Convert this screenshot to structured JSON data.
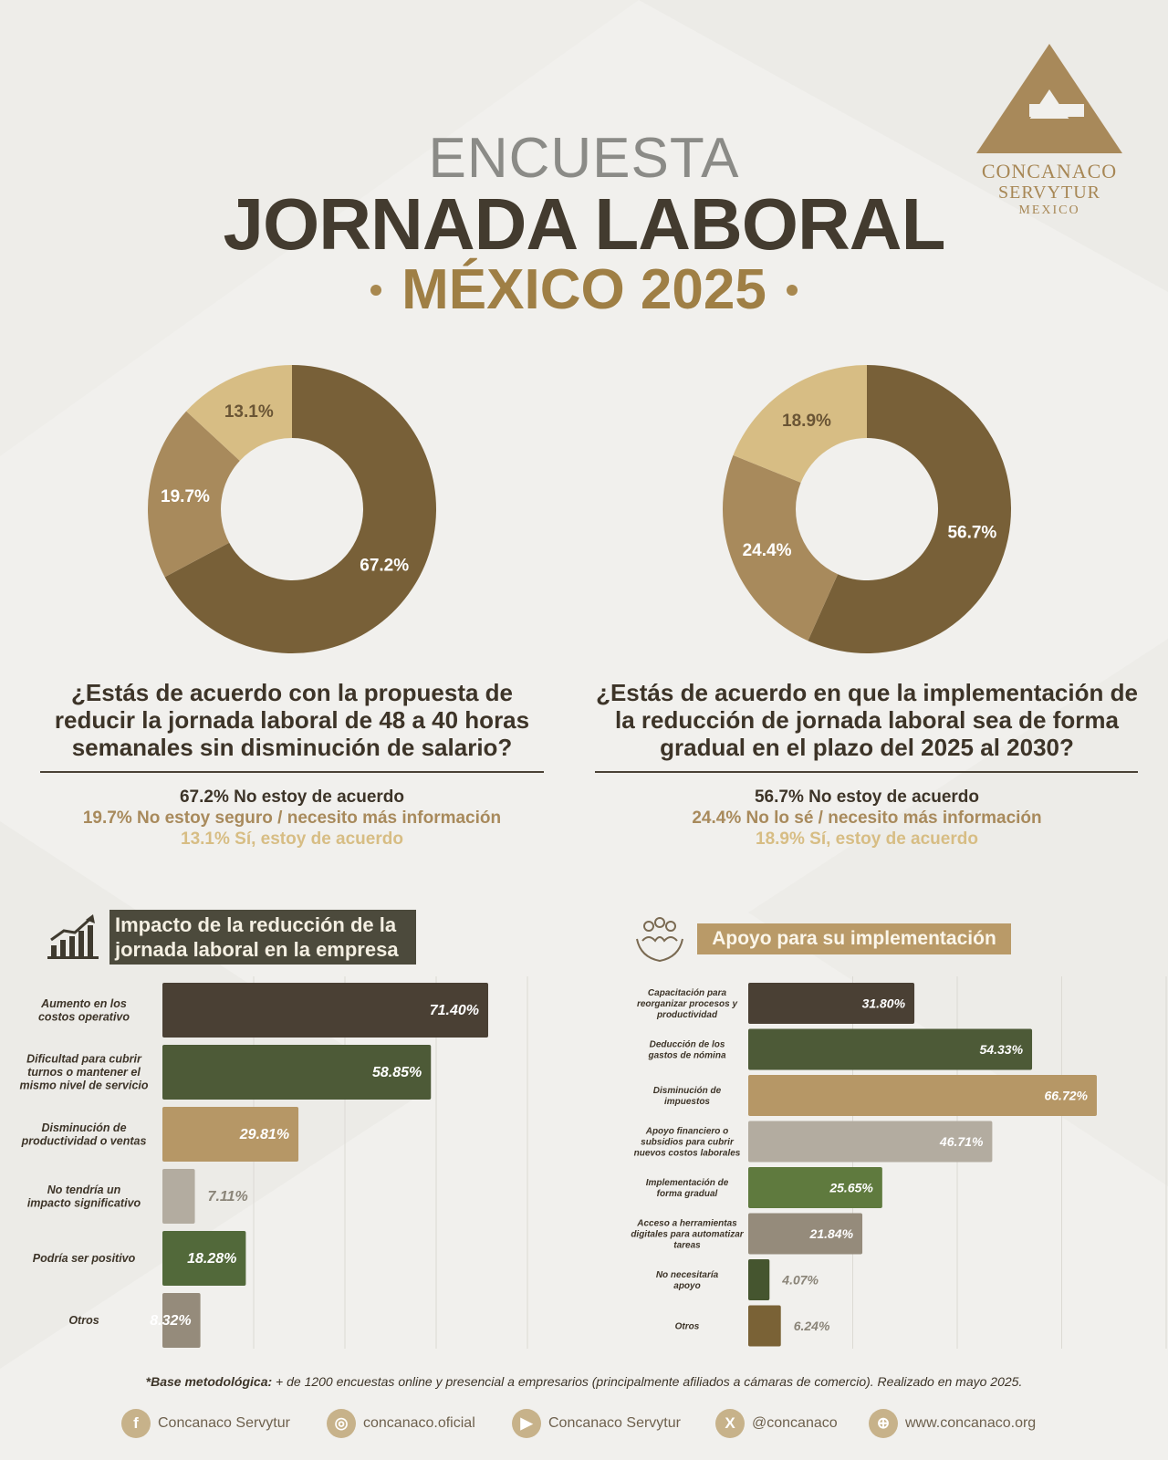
{
  "header": {
    "line1": "ENCUESTA",
    "line2": "JORNADA LABORAL",
    "line3": "MÉXICO 2025"
  },
  "logo": {
    "line1": "CONCANACO",
    "line2": "SERVYTUR",
    "line3": "MEXICO"
  },
  "colors": {
    "dark_brown": "#786038",
    "mid_tan": "#a88a5c",
    "light_tan": "#d7bd84",
    "gold_text": "#9f7f45"
  },
  "survey1": {
    "question": "¿Estás de acuerdo con la propuesta de reducir la jornada laboral de 48 a 40 horas semanales sin disminución de salario?",
    "answers": [
      "67.2% No estoy de acuerdo",
      "19.7% No estoy seguro / necesito más información",
      "13.1% Sí, estoy de acuerdo"
    ]
  },
  "survey2": {
    "question": "¿Estás de acuerdo en que la implementación de la reducción de jornada laboral sea de forma gradual en el plazo del 2025 al 2030?",
    "answers": [
      "56.7% No estoy de acuerdo",
      "24.4% No lo sé / necesito más información",
      "18.9% Sí, estoy de acuerdo"
    ]
  },
  "section_left": {
    "title_l1": "Impacto de la reducción de la",
    "title_l2": "jornada laboral en la empresa"
  },
  "section_right": {
    "title": "Apoyo para su implementación"
  },
  "chart_data": [
    {
      "type": "pie",
      "donut": true,
      "values": [
        67.2,
        19.7,
        13.1
      ],
      "labels": [
        "67.2%",
        "19.7%",
        "13.1%"
      ],
      "colors": [
        "#786038",
        "#a88a5c",
        "#d7bd84"
      ]
    },
    {
      "type": "pie",
      "donut": true,
      "values": [
        56.7,
        24.4,
        18.9
      ],
      "labels": [
        "56.7%",
        "24.4%",
        "18.9%"
      ],
      "colors": [
        "#786038",
        "#a88a5c",
        "#d7bd84"
      ]
    },
    {
      "type": "bar",
      "orientation": "horizontal",
      "categories": [
        [
          "Aumento en los",
          "costos operativo"
        ],
        [
          "Dificultad para cubrir",
          "turnos o mantener el",
          "mismo nivel de servicio"
        ],
        [
          "Disminución de",
          "productividad o ventas"
        ],
        [
          "No tendría un",
          "impacto significativo"
        ],
        [
          "Podría ser positivo"
        ],
        [
          "Otros"
        ]
      ],
      "values": [
        71.4,
        58.85,
        29.81,
        7.11,
        18.28,
        8.32
      ],
      "labels": [
        "71.40%",
        "58.85%",
        "29.81%",
        "7.11%",
        "18.28%",
        "8.32%"
      ],
      "colors": [
        "#4a4034",
        "#4d5a37",
        "#b69766",
        "#b3aca0",
        "#52693a",
        "#958b7b"
      ],
      "xlim": [
        0,
        80
      ]
    },
    {
      "type": "bar",
      "orientation": "horizontal",
      "categories": [
        [
          "Capacitación para",
          "reorganizar procesos y",
          "productividad"
        ],
        [
          "Deducción de los",
          "gastos de nómina"
        ],
        [
          "Disminución de",
          "impuestos"
        ],
        [
          "Apoyo financiero o",
          "subsidios para cubrir",
          "nuevos costos laborales"
        ],
        [
          "Implementación de",
          "forma gradual"
        ],
        [
          "Acceso a herramientas",
          "digitales para automatizar",
          "tareas"
        ],
        [
          "No necesitaría",
          "apoyo"
        ],
        [
          "Otros"
        ]
      ],
      "values": [
        31.8,
        54.33,
        66.72,
        46.71,
        25.65,
        21.84,
        4.07,
        6.24
      ],
      "labels": [
        "31.80%",
        "54.33%",
        "66.72%",
        "46.71%",
        "25.65%",
        "21.84%",
        "4.07%",
        "6.24%"
      ],
      "colors": [
        "#4a4034",
        "#4d5a37",
        "#b69766",
        "#b3aca0",
        "#5f7a3e",
        "#958b7b",
        "#45552f",
        "#7a6236"
      ],
      "xlim": [
        0,
        80
      ]
    }
  ],
  "footer": {
    "method_bold": "*Base metodológica:",
    "method_text": " + de 1200 encuestas online y presencial a empresarios (principalmente afiliados a cámaras de comercio). Realizado en mayo 2025.",
    "social": [
      {
        "icon": "facebook-icon",
        "text": "Concanaco Servytur"
      },
      {
        "icon": "instagram-icon",
        "text": "concanaco.oficial"
      },
      {
        "icon": "youtube-icon",
        "text": "Concanaco Servytur"
      },
      {
        "icon": "x-icon",
        "text": "@concanaco"
      },
      {
        "icon": "globe-icon",
        "text": "www.concanaco.org"
      }
    ]
  }
}
